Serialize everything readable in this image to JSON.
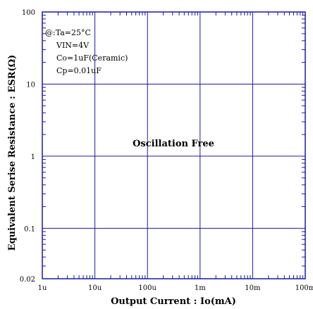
{
  "chart_data": {
    "type": "line",
    "title": "",
    "xlabel": "Output Current : Io(mA)",
    "ylabel": "Equivalent Serise Resistance : ESR(Ω)",
    "x_scale": "log",
    "y_scale": "log",
    "xlim_mA": [
      0.001,
      100
    ],
    "ylim": [
      0.02,
      100
    ],
    "x_ticks": [
      {
        "value": 0.001,
        "label": "1u"
      },
      {
        "value": 0.01,
        "label": "10u"
      },
      {
        "value": 0.1,
        "label": "100u"
      },
      {
        "value": 1,
        "label": "1m"
      },
      {
        "value": 10,
        "label": "10m"
      },
      {
        "value": 100,
        "label": "100m"
      }
    ],
    "y_ticks": [
      {
        "value": 0.02,
        "label": "0.02"
      },
      {
        "value": 0.1,
        "label": "0.1"
      },
      {
        "value": 1,
        "label": "1"
      },
      {
        "value": 10,
        "label": "10"
      },
      {
        "value": 100,
        "label": "100"
      }
    ],
    "grid": true,
    "conditions": [
      "@:Ta=25°C",
      "VIN=4V",
      "Co=1uF(Ceramic)",
      "Cp=0.01uF"
    ],
    "region_label": "Oscillation Free",
    "colors": {
      "grid": "#1a1aa0",
      "frame": "#1a1aa0",
      "text": "#000000"
    }
  }
}
